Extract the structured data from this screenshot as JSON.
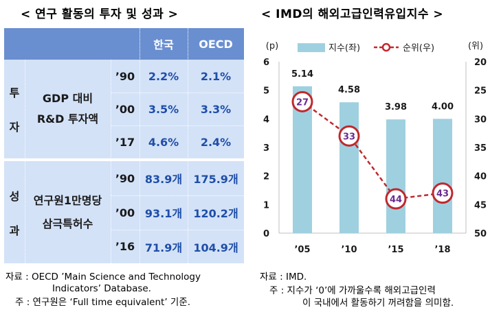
{
  "left": {
    "title": "< 연구 활동의 투자 및 성과 >",
    "headers": [
      "한국",
      "OECD"
    ],
    "sections": [
      {
        "tag": [
          "투",
          "자"
        ],
        "label": [
          "GDP 대비",
          "R&D 투자액"
        ],
        "rows": [
          {
            "year": "’90",
            "korea": "2.2%",
            "oecd": "2.1%"
          },
          {
            "year": "’00",
            "korea": "3.5%",
            "oecd": "3.3%"
          },
          {
            "year": "’17",
            "korea": "4.6%",
            "oecd": "2.4%"
          }
        ]
      },
      {
        "tag": [
          "성",
          "과"
        ],
        "label": [
          "연구원1만명당",
          "삼극특허수"
        ],
        "rows": [
          {
            "year": "’90",
            "korea": "83.9개",
            "oecd": "175.9개"
          },
          {
            "year": "’00",
            "korea": "93.1개",
            "oecd": "120.2개"
          },
          {
            "year": "’16",
            "korea": "71.9개",
            "oecd": "104.9개"
          }
        ]
      }
    ],
    "source": "자료 : OECD ’Main Science and Technology",
    "source2": "Indicators’ Database.",
    "note": "주 : 연구원은 ‘Full time equivalent’ 기준."
  },
  "right": {
    "title": "< IMD의 해외고급인력유입지수 >",
    "source": "자료 : IMD.",
    "note1": "주 : 지수가 ‘0’에 가까울수록 해외고급인력",
    "note2": "이 국내에서 활동하기 꺼려함을 의미함.",
    "colors": {
      "bar": "#9fd0e0",
      "line": "#c0282d",
      "marker_text": "#6a2c8f"
    }
  },
  "chart_data": {
    "type": "bar",
    "categories": [
      "’05",
      "’10",
      "’15",
      "’18"
    ],
    "series": [
      {
        "name": "지수(좌)",
        "type": "bar",
        "axis": "left",
        "values": [
          5.14,
          4.58,
          3.98,
          4.0
        ],
        "labels": [
          "5.14",
          "4.58",
          "3.98",
          "4.00"
        ]
      },
      {
        "name": "순위(우)",
        "type": "line",
        "axis": "right",
        "values": [
          27,
          33,
          44,
          43
        ],
        "labels": [
          "27",
          "33",
          "44",
          "43"
        ]
      }
    ],
    "left_axis": {
      "unit": "(p)",
      "ticks": [
        "0",
        "1",
        "2",
        "3",
        "4",
        "5",
        "6"
      ],
      "ylim": [
        0,
        6
      ]
    },
    "right_axis": {
      "unit": "(위)",
      "ticks": [
        "20",
        "25",
        "30",
        "35",
        "40",
        "45",
        "50"
      ],
      "ylim": [
        20,
        50
      ],
      "inverted": true
    },
    "legend": "top",
    "grid": false
  }
}
